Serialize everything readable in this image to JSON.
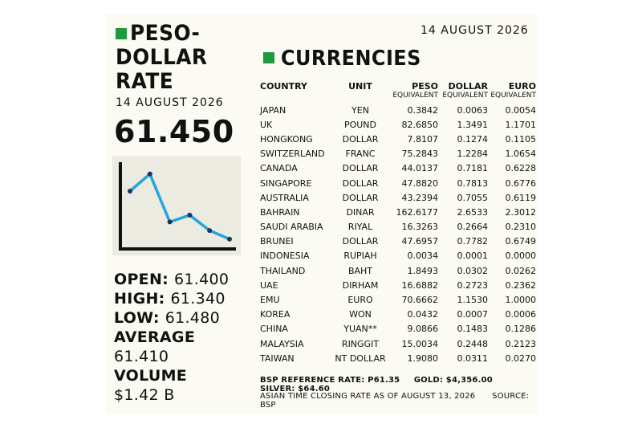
{
  "left": {
    "title_line1": "PESO-",
    "title_line2": "DOLLAR",
    "title_line3": "RATE",
    "date": "14 AUGUST 2026",
    "rate": "61.450",
    "open_label": "OPEN:",
    "open_value": "61.400",
    "high_label": "HIGH:",
    "high_value": "61.340",
    "low_label": "LOW:",
    "low_value": "61.480",
    "average_label": "AVERAGE",
    "average_value": "61.410",
    "volume_label": "VOLUME",
    "volume_value": "$1.42 B"
  },
  "trend": {
    "values": [
      3.0,
      4.0,
      1.2,
      1.6,
      0.7,
      0.2
    ],
    "ylim": [
      0,
      4.5
    ],
    "line_color": "#27a3dd",
    "point_color": "#17365d"
  },
  "right": {
    "date": "14 AUGUST 2026",
    "title": "CURRENCIES",
    "headers": {
      "country": "COUNTRY",
      "unit": "UNIT",
      "peso": "PESO",
      "dollar": "DOLLAR",
      "euro": "EURO"
    },
    "subheaders": {
      "peso": "EQUIVALENT",
      "dollar": "EQUIVALENT",
      "euro": "EQUIVALENT"
    },
    "rows": [
      {
        "country": "JAPAN",
        "unit": "YEN",
        "peso": "0.3842",
        "dollar": "0.0063",
        "euro": "0.0054"
      },
      {
        "country": "UK",
        "unit": "POUND",
        "peso": "82.6850",
        "dollar": "1.3491",
        "euro": "1.1701"
      },
      {
        "country": "HONGKONG",
        "unit": "DOLLAR",
        "peso": "7.8107",
        "dollar": "0.1274",
        "euro": "0.1105"
      },
      {
        "country": "SWITZERLAND",
        "unit": "FRANC",
        "peso": "75.2843",
        "dollar": "1.2284",
        "euro": "1.0654"
      },
      {
        "country": "CANADA",
        "unit": "DOLLAR",
        "peso": "44.0137",
        "dollar": "0.7181",
        "euro": "0.6228"
      },
      {
        "country": "SINGAPORE",
        "unit": "DOLLAR",
        "peso": "47.8820",
        "dollar": "0.7813",
        "euro": "0.6776"
      },
      {
        "country": "AUSTRALIA",
        "unit": "DOLLAR",
        "peso": "43.2394",
        "dollar": "0.7055",
        "euro": "0.6119"
      },
      {
        "country": "BAHRAIN",
        "unit": "DINAR",
        "peso": "162.6177",
        "dollar": "2.6533",
        "euro": "2.3012"
      },
      {
        "country": "SAUDI ARABIA",
        "unit": "RIYAL",
        "peso": "16.3263",
        "dollar": "0.2664",
        "euro": "0.2310"
      },
      {
        "country": "BRUNEI",
        "unit": "DOLLAR",
        "peso": "47.6957",
        "dollar": "0.7782",
        "euro": "0.6749"
      },
      {
        "country": "INDONESIA",
        "unit": "RUPIAH",
        "peso": "0.0034",
        "dollar": "0.0001",
        "euro": "0.0000"
      },
      {
        "country": "THAILAND",
        "unit": "BAHT",
        "peso": "1.8493",
        "dollar": "0.0302",
        "euro": "0.0262"
      },
      {
        "country": "UAE",
        "unit": "DIRHAM",
        "peso": "16.6882",
        "dollar": "0.2723",
        "euro": "0.2362"
      },
      {
        "country": "EMU",
        "unit": "EURO",
        "peso": "70.6662",
        "dollar": "1.1530",
        "euro": "1.0000"
      },
      {
        "country": "KOREA",
        "unit": "WON",
        "peso": "0.0432",
        "dollar": "0.0007",
        "euro": "0.0006"
      },
      {
        "country": "CHINA",
        "unit": "YUAN**",
        "peso": "9.0866",
        "dollar": "0.1483",
        "euro": "0.1286"
      },
      {
        "country": "MALAYSIA",
        "unit": "RINGGIT",
        "peso": "15.0034",
        "dollar": "0.2448",
        "euro": "0.2123"
      },
      {
        "country": "TAIWAN",
        "unit": "NT DOLLAR",
        "peso": "1.9080",
        "dollar": "0.0311",
        "euro": "0.0270"
      }
    ],
    "footer_line1_a": "BSP REFERENCE RATE: P61.35",
    "footer_line1_b": "GOLD: $4,356.00",
    "footer_line1_c": "SILVER: $64.60",
    "footer_line2_a": "ASIAN TIME CLOSING RATE AS OF AUGUST 13, 2026",
    "footer_line2_b": "SOURCE: BSP"
  },
  "colors": {
    "accent": "#1f9a3c",
    "background": "#fbfaf3",
    "text": "#111111"
  }
}
